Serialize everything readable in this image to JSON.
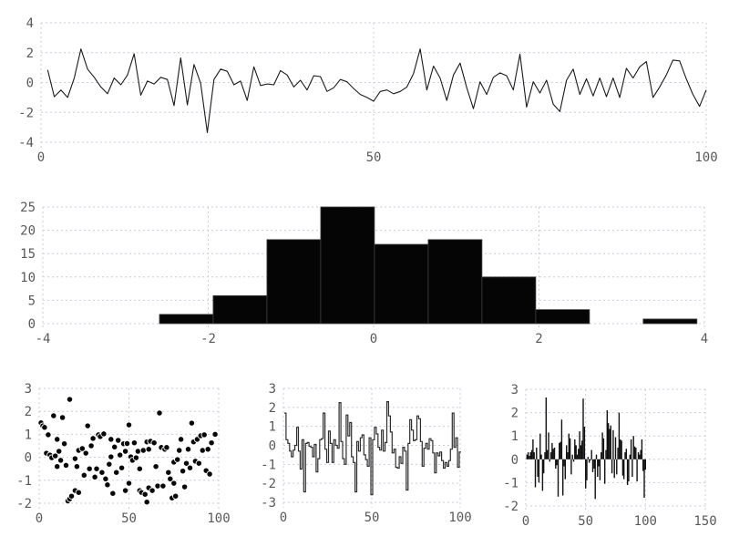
{
  "page": {
    "background": "#ffffff"
  },
  "style": {
    "grid_color": "#cdcdde",
    "label_color": "#595959",
    "line_color": "#1a1a1a",
    "step_color": "#2e2e2e",
    "impulse_color": "#111111",
    "scatter_fill": "#080808",
    "scatter_rim": "#ffffff",
    "bar_fill": "#050505",
    "bar_stroke": "#444444"
  },
  "chart_data": [
    {
      "id": "noise-line",
      "type": "line",
      "x_start": 1,
      "values": [
        0.85,
        -0.95,
        -0.5,
        -1.0,
        0.3,
        2.25,
        0.9,
        0.35,
        -0.3,
        -0.75,
        0.3,
        -0.15,
        0.5,
        1.93,
        -0.85,
        0.1,
        -0.1,
        0.35,
        0.2,
        -1.55,
        1.65,
        -1.5,
        1.2,
        -0.05,
        -3.35,
        0.2,
        0.9,
        0.75,
        -0.15,
        0.1,
        -1.2,
        1.05,
        -0.2,
        -0.1,
        -0.15,
        0.8,
        0.5,
        -0.3,
        0.15,
        -0.5,
        0.45,
        0.4,
        -0.6,
        -0.35,
        0.2,
        0.05,
        -0.4,
        -0.8,
        -1.0,
        -1.25,
        -0.6,
        -0.5,
        -0.75,
        -0.6,
        -0.3,
        0.6,
        2.25,
        -0.5,
        1.1,
        0.3,
        -1.2,
        0.5,
        1.3,
        -0.35,
        -1.75,
        0.05,
        -0.8,
        0.35,
        0.65,
        0.45,
        -0.5,
        1.9,
        -1.65,
        0.05,
        -0.7,
        0.15,
        -1.45,
        -1.95,
        0.15,
        0.9,
        -0.8,
        0.25,
        -0.9,
        0.3,
        -0.95,
        0.3,
        -1.0,
        0.95,
        0.3,
        1.05,
        1.4,
        -1.0,
        -0.3,
        0.5,
        1.5,
        1.45,
        0.25,
        -0.8,
        -1.6,
        -0.5
      ],
      "xlim": [
        0,
        100
      ],
      "ylim": [
        -4,
        4
      ],
      "xticks": [
        0,
        50,
        100
      ],
      "yticks": [
        -4,
        -2,
        0,
        2,
        4
      ],
      "grid": true,
      "legend": false,
      "title": ""
    },
    {
      "id": "histogram",
      "type": "bar",
      "bin_edges": [
        -2.59,
        -1.94,
        -1.29,
        -0.64,
        0.01,
        0.66,
        1.31,
        1.96,
        2.61,
        3.26,
        3.91
      ],
      "counts": [
        2,
        6,
        18,
        25,
        17,
        18,
        10,
        3,
        0,
        1
      ],
      "xlim": [
        -4,
        4
      ],
      "ylim": [
        0,
        25
      ],
      "xticks": [
        -4,
        -2,
        0,
        2,
        4
      ],
      "yticks": [
        0,
        5,
        10,
        15,
        20,
        25
      ],
      "grid": true,
      "legend": false,
      "title": ""
    },
    {
      "id": "scatter",
      "type": "scatter",
      "points": [
        [
          1,
          1.5
        ],
        [
          2,
          1.37
        ],
        [
          3,
          1.3
        ],
        [
          4,
          0.18
        ],
        [
          5,
          0.98
        ],
        [
          6,
          0.1
        ],
        [
          7,
          -0.02
        ],
        [
          8,
          1.81
        ],
        [
          9,
          0.06
        ],
        [
          10,
          -0.4
        ],
        [
          10,
          0.78
        ],
        [
          11,
          0.26
        ],
        [
          12,
          -0.13
        ],
        [
          13,
          1.73
        ],
        [
          14,
          0.59
        ],
        [
          15,
          -0.35
        ],
        [
          16,
          -1.9
        ],
        [
          17,
          2.52
        ],
        [
          17,
          -1.81
        ],
        [
          18,
          -1.69
        ],
        [
          20,
          -0.06
        ],
        [
          20,
          -1.45
        ],
        [
          21,
          -0.4
        ],
        [
          22,
          0.3
        ],
        [
          22,
          -1.53
        ],
        [
          24,
          0.38
        ],
        [
          25,
          -0.78
        ],
        [
          26,
          0.18
        ],
        [
          27,
          1.37
        ],
        [
          28,
          -0.5
        ],
        [
          29,
          0.5
        ],
        [
          30,
          0.82
        ],
        [
          31,
          -0.86
        ],
        [
          32,
          -0.5
        ],
        [
          33,
          0.98
        ],
        [
          34,
          0.9
        ],
        [
          35,
          -0.66
        ],
        [
          36,
          1.02
        ],
        [
          37,
          -0.94
        ],
        [
          38,
          -1.2
        ],
        [
          39,
          -0.3
        ],
        [
          40,
          0.78
        ],
        [
          40,
          0.02
        ],
        [
          41,
          -1.57
        ],
        [
          42,
          0.45
        ],
        [
          43,
          -0.66
        ],
        [
          44,
          0.74
        ],
        [
          45,
          0.1
        ],
        [
          46,
          -0.46
        ],
        [
          47,
          0.59
        ],
        [
          48,
          0.26
        ],
        [
          48,
          -1.45
        ],
        [
          49,
          0.6
        ],
        [
          50,
          1.41
        ],
        [
          50,
          -1.13
        ],
        [
          51,
          0.02
        ],
        [
          52,
          -0.13
        ],
        [
          53,
          0.63
        ],
        [
          54,
          -0.02
        ],
        [
          55,
          0.26
        ],
        [
          56,
          -0.5
        ],
        [
          56,
          -1.45
        ],
        [
          57,
          -1.53
        ],
        [
          58,
          0.3
        ],
        [
          59,
          -1.61
        ],
        [
          60,
          0.67
        ],
        [
          60,
          -1.95
        ],
        [
          61,
          0.35
        ],
        [
          61,
          -1.33
        ],
        [
          62,
          0.7
        ],
        [
          63,
          -1.45
        ],
        [
          64,
          0.63
        ],
        [
          65,
          -0.4
        ],
        [
          66,
          -1.25
        ],
        [
          67,
          1.93
        ],
        [
          68,
          0.43
        ],
        [
          69,
          -1.25
        ],
        [
          70,
          0.35
        ],
        [
          71,
          0.43
        ],
        [
          72,
          -0.66
        ],
        [
          73,
          -0.94
        ],
        [
          74,
          -1.77
        ],
        [
          75,
          -0.21
        ],
        [
          75,
          -1.13
        ],
        [
          76,
          -1.69
        ],
        [
          77,
          -0.1
        ],
        [
          78,
          0.3
        ],
        [
          79,
          0.78
        ],
        [
          80,
          -0.6
        ],
        [
          81,
          -1.29
        ],
        [
          82,
          -0.26
        ],
        [
          83,
          0.35
        ],
        [
          84,
          -0.46
        ],
        [
          85,
          1.49
        ],
        [
          86,
          0.67
        ],
        [
          87,
          -0.17
        ],
        [
          88,
          0.78
        ],
        [
          89,
          -0.26
        ],
        [
          90,
          0.94
        ],
        [
          91,
          0.3
        ],
        [
          92,
          0.98
        ],
        [
          93,
          -0.58
        ],
        [
          94,
          0.35
        ],
        [
          95,
          -0.73
        ],
        [
          96,
          0.63
        ],
        [
          98,
          1.0
        ]
      ],
      "xlim": [
        0,
        100
      ],
      "ylim": [
        -2,
        3
      ],
      "xticks": [
        0,
        50,
        100
      ],
      "yticks": [
        -2,
        -1,
        0,
        1,
        2,
        3
      ],
      "grid": true,
      "legend": false,
      "title": ""
    },
    {
      "id": "step",
      "type": "step",
      "x_start": 1,
      "values": [
        1.7,
        0.3,
        0.1,
        -0.3,
        -0.6,
        -0.25,
        0.0,
        0.95,
        -0.3,
        -1.25,
        0.3,
        -2.45,
        0.1,
        0.15,
        -0.05,
        -0.1,
        -0.6,
        0.05,
        -1.4,
        -0.7,
        0.3,
        0.35,
        1.7,
        -0.2,
        -0.9,
        0.75,
        0.1,
        -0.9,
        0.3,
        0.0,
        -0.15,
        2.25,
        0.2,
        -0.7,
        -1.0,
        1.6,
        0.5,
        1.2,
        -0.6,
        -0.9,
        -2.45,
        0.2,
        -0.3,
        0.4,
        0.55,
        -0.5,
        -0.75,
        -1.1,
        0.4,
        -2.6,
        0.3,
        0.95,
        0.6,
        -0.1,
        -0.25,
        0.8,
        -0.3,
        0.15,
        2.3,
        1.55,
        0.7,
        -0.4,
        -0.2,
        -1.15,
        -1.2,
        -0.6,
        -0.95,
        -0.1,
        -0.3,
        -2.35,
        0.1,
        1.35,
        0.8,
        0.25,
        0.3,
        1.55,
        1.4,
        0.2,
        -1.1,
        -0.15,
        0.1,
        -0.2,
        0.35,
        0.25,
        -0.4,
        -1.45,
        -0.4,
        -0.55,
        -0.35,
        -0.8,
        -1.2,
        -0.9,
        -1.1,
        -0.8,
        -0.2,
        1.7,
        -0.1,
        0.4,
        -1.15,
        -0.35
      ],
      "xlim": [
        0,
        100
      ],
      "ylim": [
        -3,
        3
      ],
      "xticks": [
        0,
        50,
        100
      ],
      "yticks": [
        -3,
        -2,
        -1,
        0,
        1,
        2,
        3
      ],
      "grid": true,
      "legend": false,
      "title": ""
    },
    {
      "id": "impulse",
      "type": "impulse",
      "x_start": 1,
      "values": [
        0.2,
        0.3,
        0.15,
        0.3,
        0.4,
        0.85,
        0.3,
        -1.2,
        0.5,
        -0.75,
        -1.0,
        1.1,
        0.2,
        -1.35,
        -0.6,
        0.3,
        2.65,
        0.4,
        1.15,
        -0.1,
        0.3,
        0.7,
        0.45,
        0.5,
        -0.4,
        -0.25,
        -1.6,
        0.7,
        0.75,
        1.7,
        -1.55,
        -0.3,
        -0.85,
        0.6,
        0.3,
        1.1,
        0.9,
        -0.65,
        0.2,
        -0.1,
        0.85,
        0.6,
        0.2,
        0.45,
        1.2,
        0.6,
        0.8,
        2.6,
        1.4,
        -1.25,
        -0.9,
        0.1,
        -0.15,
        -0.05,
        0.4,
        -0.55,
        -0.4,
        -1.7,
        0.2,
        -0.75,
        -0.3,
        -0.9,
        0.3,
        1.15,
        0.9,
        -1.05,
        0.4,
        2.1,
        1.55,
        1.3,
        1.45,
        -0.6,
        1.25,
        -0.8,
        0.95,
        -0.65,
        0.5,
        2.0,
        0.85,
        0.8,
        -0.7,
        -0.85,
        0.3,
        0.45,
        -1.1,
        -0.95,
        0.2,
        0.85,
        -0.75,
        1.0,
        0.55,
        0.5,
        -0.95,
        0.3,
        0.2,
        0.4,
        0.85,
        -0.5,
        -1.65,
        -0.45
      ],
      "xlim": [
        0,
        150
      ],
      "ylim": [
        -2,
        3
      ],
      "xticks": [
        0,
        50,
        100,
        150
      ],
      "yticks": [
        -2,
        -1,
        0,
        1,
        2,
        3
      ],
      "grid": true,
      "legend": false,
      "title": ""
    }
  ]
}
